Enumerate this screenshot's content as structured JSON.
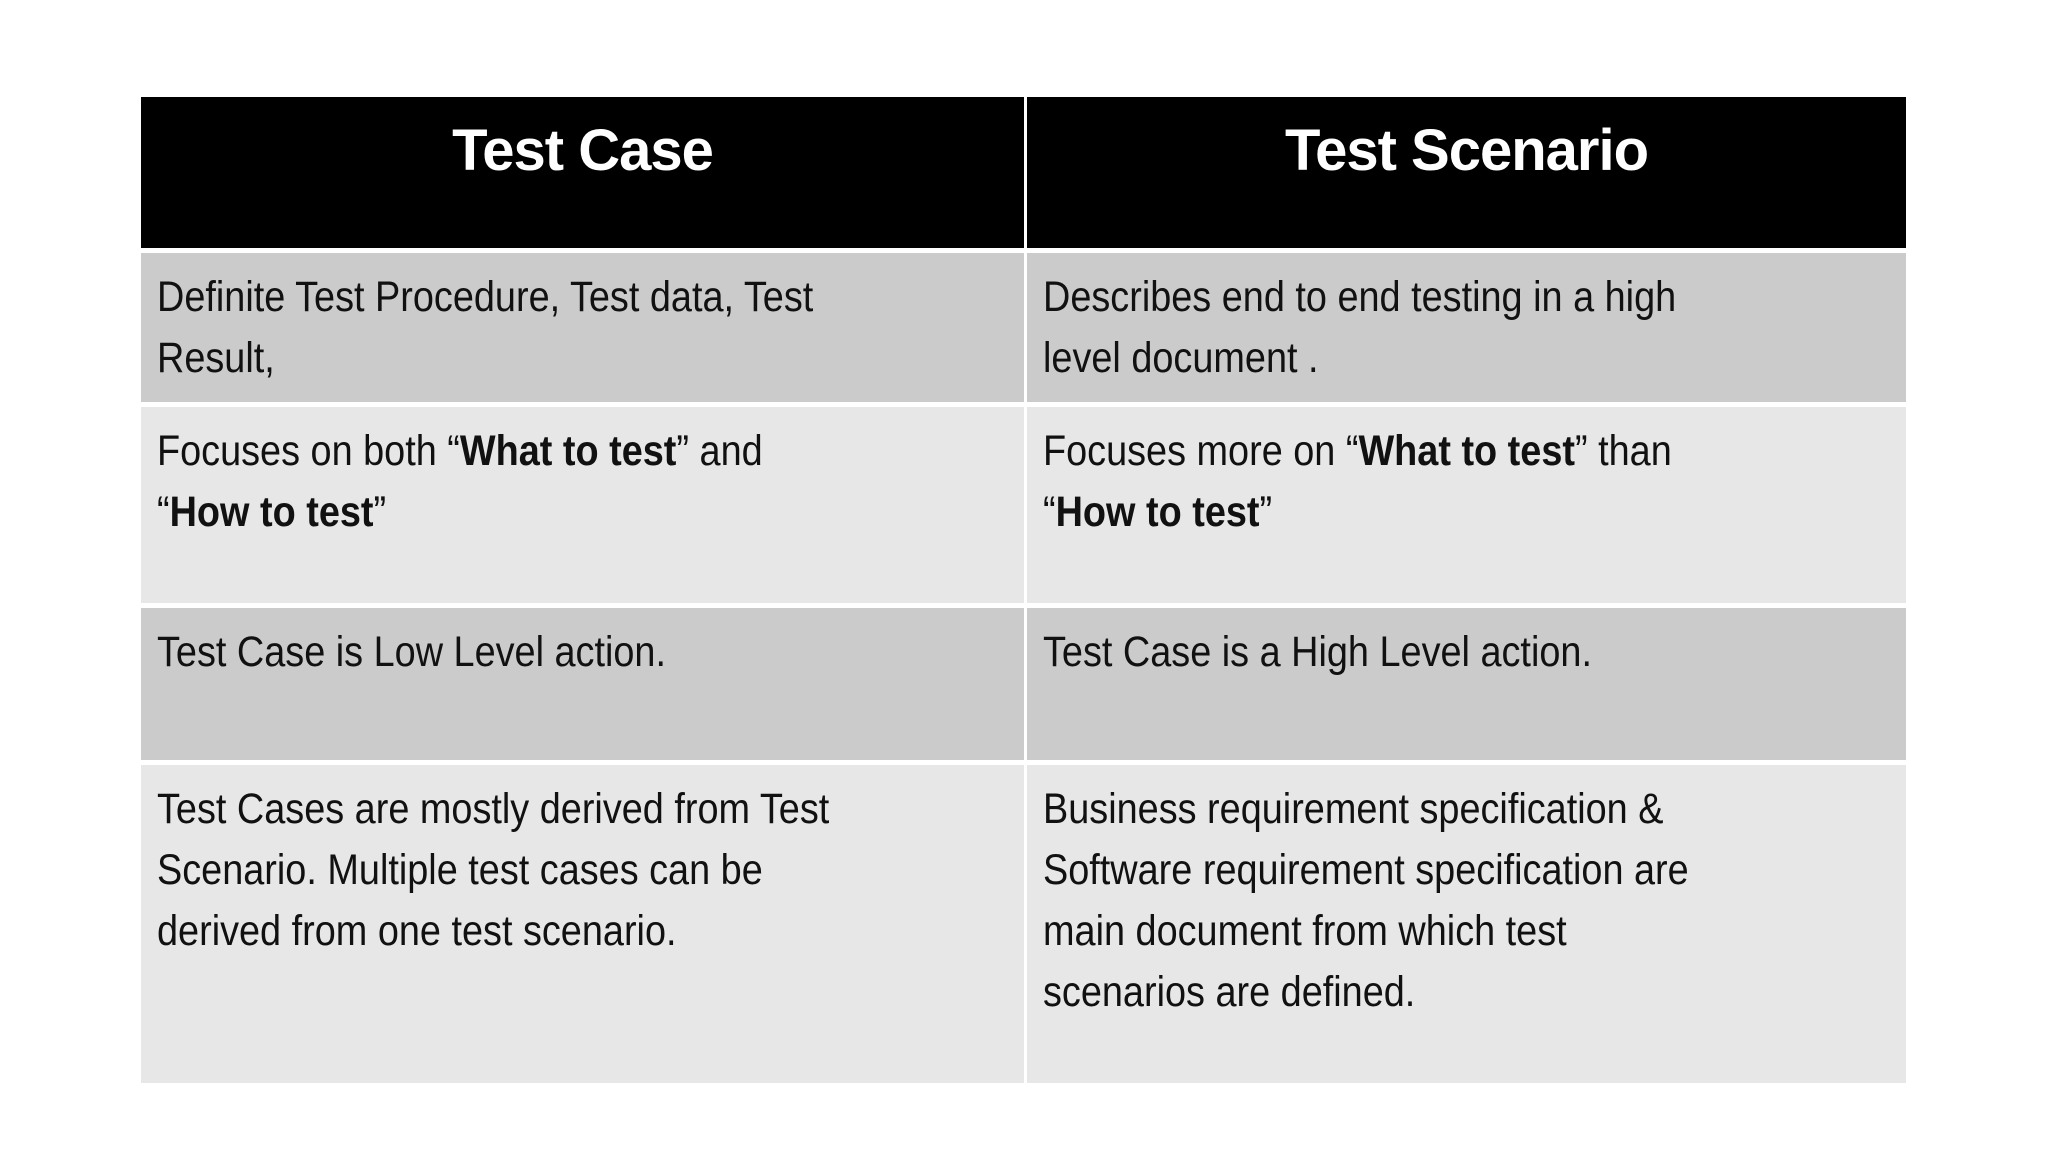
{
  "table": {
    "headers": [
      "Test Case",
      "Test Scenario"
    ],
    "colors": {
      "header_bg": "#000000",
      "header_text": "#ffffff",
      "row_dark": "#cbcbcb",
      "row_light": "#e7e7e7"
    },
    "rows": [
      {
        "cells": [
          {
            "lines": [
              [
                {
                  "text": "Definite Test Procedure, Test data, Test",
                  "bold": false
                }
              ],
              [
                {
                  "text": "Result,",
                  "bold": false
                }
              ]
            ]
          },
          {
            "lines": [
              [
                {
                  "text": "Describes end to end testing in a high",
                  "bold": false
                }
              ],
              [
                {
                  "text": "level document .",
                  "bold": false
                }
              ]
            ]
          }
        ]
      },
      {
        "cells": [
          {
            "lines": [
              [
                {
                  "text": "Focuses on both “",
                  "bold": false
                },
                {
                  "text": "What to test",
                  "bold": true
                },
                {
                  "text": "” and",
                  "bold": false
                }
              ],
              [
                {
                  "text": "“",
                  "bold": false
                },
                {
                  "text": "How to test",
                  "bold": true
                },
                {
                  "text": "”",
                  "bold": false
                }
              ]
            ]
          },
          {
            "lines": [
              [
                {
                  "text": "Focuses more on “",
                  "bold": false
                },
                {
                  "text": "What to test",
                  "bold": true
                },
                {
                  "text": "” than",
                  "bold": false
                }
              ],
              [
                {
                  "text": "“",
                  "bold": false
                },
                {
                  "text": "How to test",
                  "bold": true
                },
                {
                  "text": "”",
                  "bold": false
                }
              ]
            ]
          }
        ]
      },
      {
        "cells": [
          {
            "lines": [
              [
                {
                  "text": "Test Case is Low Level action.",
                  "bold": false
                }
              ]
            ]
          },
          {
            "lines": [
              [
                {
                  "text": "Test Case is a High Level action.",
                  "bold": false
                }
              ]
            ]
          }
        ]
      },
      {
        "cells": [
          {
            "lines": [
              [
                {
                  "text": "Test Cases are mostly derived from Test",
                  "bold": false
                }
              ],
              [
                {
                  "text": "Scenario. Multiple test cases can be",
                  "bold": false
                }
              ],
              [
                {
                  "text": "derived from one test scenario.",
                  "bold": false
                }
              ]
            ]
          },
          {
            "lines": [
              [
                {
                  "text": "Business requirement specification &",
                  "bold": false
                }
              ],
              [
                {
                  "text": "Software requirement specification are",
                  "bold": false
                }
              ],
              [
                {
                  "text": "main document from which test",
                  "bold": false
                }
              ],
              [
                {
                  "text": "scenarios are defined.",
                  "bold": false
                }
              ]
            ]
          }
        ]
      }
    ]
  }
}
